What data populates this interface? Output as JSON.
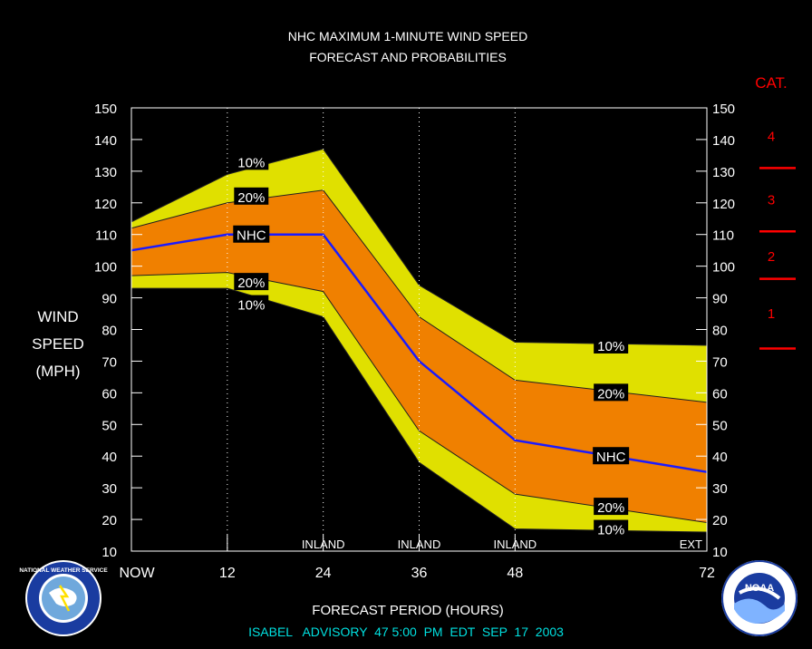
{
  "chart_data": {
    "type": "area",
    "title": "NHC MAXIMUM 1-MINUTE WIND SPEED",
    "subtitle": "FORECAST AND PROBABILITIES",
    "xlabel": "FORECAST PERIOD (HOURS)",
    "ylabel_lines": [
      "WIND",
      "SPEED",
      "(MPH)"
    ],
    "footer": "ISABEL   ADVISORY  47 5:00  PM  EDT  SEP  17  2003",
    "ylim": [
      10,
      150
    ],
    "yticks": [
      10,
      20,
      30,
      40,
      50,
      60,
      70,
      80,
      90,
      100,
      110,
      120,
      130,
      140,
      150
    ],
    "xlim": [
      0,
      72
    ],
    "xticks": [
      {
        "x": 0,
        "label": "NOW"
      },
      {
        "x": 12,
        "label": "12"
      },
      {
        "x": 24,
        "label": "24"
      },
      {
        "x": 36,
        "label": "36"
      },
      {
        "x": 48,
        "label": "48"
      },
      {
        "x": 72,
        "label": "72"
      }
    ],
    "inland_labels": [
      {
        "x": 24,
        "label": "INLAND"
      },
      {
        "x": 36,
        "label": "INLAND"
      },
      {
        "x": 48,
        "label": "INLAND"
      },
      {
        "x": 72,
        "label": "EXT"
      }
    ],
    "x": [
      0,
      12,
      24,
      36,
      48,
      72
    ],
    "series": [
      {
        "name": "10%",
        "band": "upper",
        "values": [
          114,
          129,
          137,
          94,
          76,
          75
        ]
      },
      {
        "name": "20%",
        "band": "upper",
        "values": [
          112,
          120,
          124,
          84,
          64,
          57
        ]
      },
      {
        "name": "NHC",
        "band": "forecast",
        "values": [
          105,
          110,
          110,
          70,
          45,
          35
        ]
      },
      {
        "name": "20%",
        "band": "lower",
        "values": [
          97,
          98,
          92,
          48,
          28,
          19
        ]
      },
      {
        "name": "10%",
        "band": "lower",
        "values": [
          93,
          93,
          84,
          38,
          17,
          16
        ]
      }
    ],
    "line_labels": [
      {
        "text": "10%",
        "x": 15,
        "y": 133
      },
      {
        "text": "20%",
        "x": 15,
        "y": 122
      },
      {
        "text": "NHC",
        "x": 15,
        "y": 110
      },
      {
        "text": "20%",
        "x": 15,
        "y": 95
      },
      {
        "text": "10%",
        "x": 15,
        "y": 88
      },
      {
        "text": "10%",
        "x": 60,
        "y": 75
      },
      {
        "text": "20%",
        "x": 60,
        "y": 60
      },
      {
        "text": "NHC",
        "x": 60,
        "y": 40
      },
      {
        "text": "20%",
        "x": 60,
        "y": 24
      },
      {
        "text": "10%",
        "x": 60,
        "y": 17
      }
    ],
    "categories_heading": "CAT.",
    "category_thresholds": [
      74,
      96,
      111,
      131
    ],
    "category_labels": [
      {
        "label": "1",
        "y": 85
      },
      {
        "label": "2",
        "y": 103
      },
      {
        "label": "3",
        "y": 121
      },
      {
        "label": "4",
        "y": 141
      }
    ],
    "colors": {
      "outer_band": "#e0e000",
      "inner_band": "#f08000",
      "forecast_line": "#1a1aff",
      "category": "#ff0000",
      "footer_text": "#00e0e0",
      "frame": "#ffffff"
    }
  },
  "logos": {
    "left_icon": "nws-seal-icon",
    "left_text": "NATIONAL WEATHER SERVICE",
    "right_icon": "noaa-seal-icon",
    "right_text": "NOAA"
  }
}
